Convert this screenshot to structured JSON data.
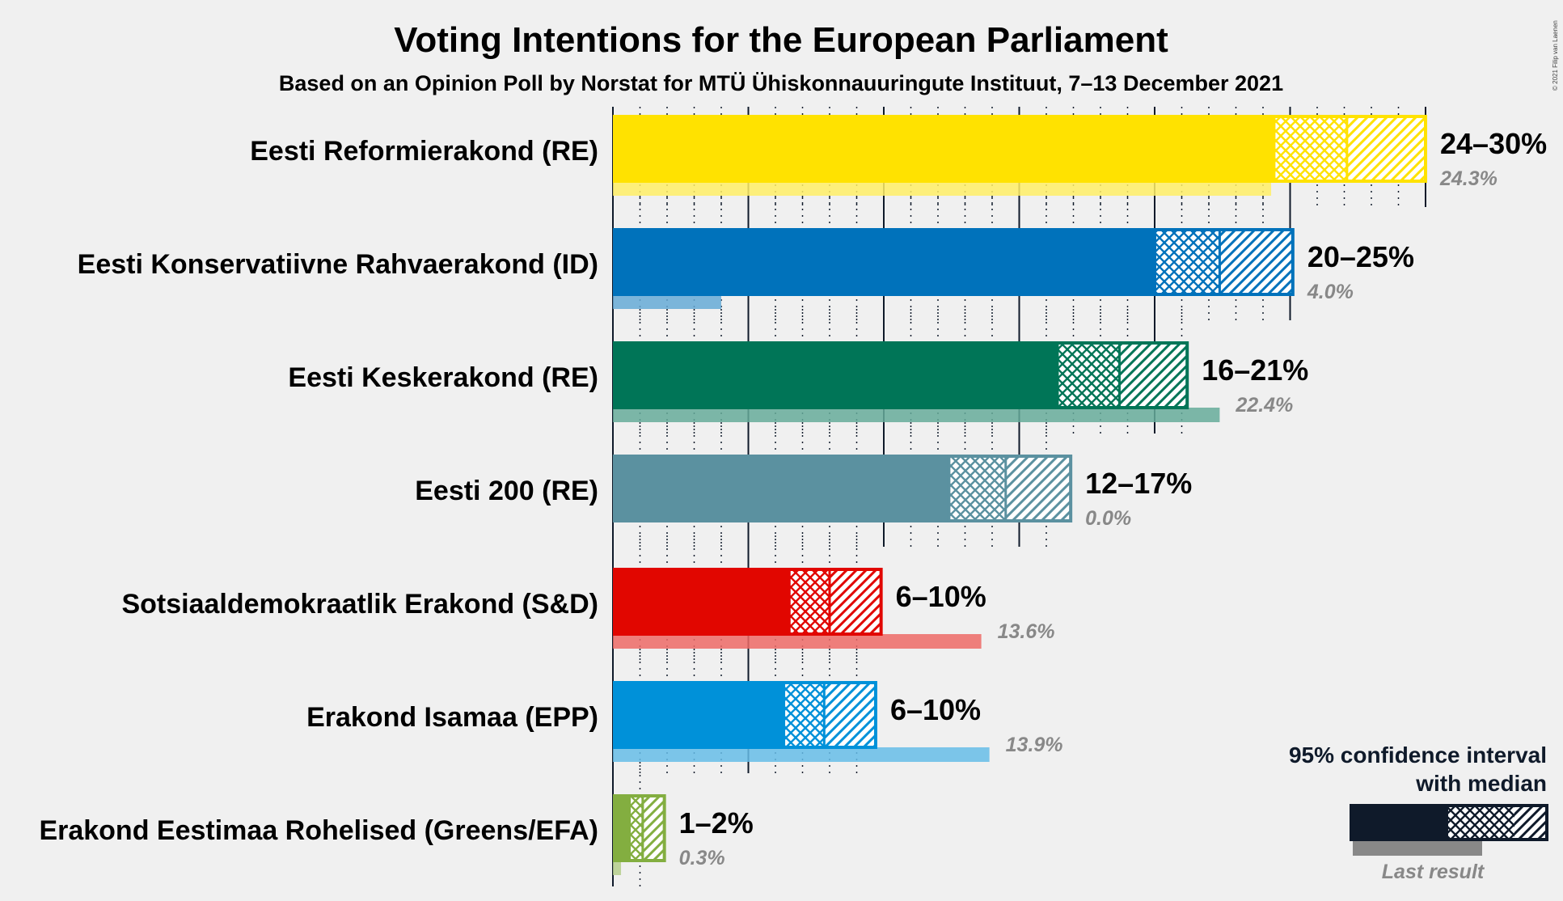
{
  "title": "Voting Intentions for the European Parliament",
  "subtitle": "Based on an Opinion Poll by Norstat for MTÜ Ühiskonnauuringute Instituut, 7–13 December 2021",
  "copyright": "© 2021 Filip van Laenen",
  "legend": {
    "line1": "95% confidence interval",
    "line2": "with median",
    "last_result": "Last result"
  },
  "chart_data": {
    "type": "bar",
    "orientation": "horizontal",
    "title": "Voting Intentions for the European Parliament",
    "subtitle": "Based on an Opinion Poll by Norstat for MTÜ Ühiskonnauuringute Instituut, 7–13 December 2021",
    "xlim": [
      0,
      30
    ],
    "series": [
      {
        "name": "95% confidence interval with median"
      },
      {
        "name": "Last result"
      }
    ],
    "parties": [
      {
        "name": "Eesti Reformierakond (RE)",
        "color": "#FFE200",
        "low": 24.4,
        "median": 27.1,
        "high": 30.0,
        "range_label": "24–30%",
        "last": 24.3,
        "last_label": "24.3%"
      },
      {
        "name": "Eesti Konservatiivne Rahvaerakond (ID)",
        "color": "#0072BB",
        "low": 20.0,
        "median": 22.4,
        "high": 25.1,
        "range_label": "20–25%",
        "last": 4.0,
        "last_label": "4.0%"
      },
      {
        "name": "Eesti Keskerakond (RE)",
        "color": "#007557",
        "low": 16.4,
        "median": 18.7,
        "high": 21.2,
        "range_label": "16–21%",
        "last": 22.4,
        "last_label": "22.4%"
      },
      {
        "name": "Eesti 200 (RE)",
        "color": "#5B91A0",
        "low": 12.4,
        "median": 14.5,
        "high": 16.9,
        "range_label": "12–17%",
        "last": 0.0,
        "last_label": "0.0%"
      },
      {
        "name": "Sotsiaaldemokraatlik Erakond (S&D)",
        "color": "#E10600",
        "low": 6.5,
        "median": 8.0,
        "high": 9.9,
        "range_label": "6–10%",
        "last": 13.6,
        "last_label": "13.6%"
      },
      {
        "name": "Erakond Isamaa (EPP)",
        "color": "#0091D9",
        "low": 6.3,
        "median": 7.8,
        "high": 9.7,
        "range_label": "6–10%",
        "last": 13.9,
        "last_label": "13.9%"
      },
      {
        "name": "Erakond Eestimaa Rohelised (Greens/EFA)",
        "color": "#83AE40",
        "low": 0.6,
        "median": 1.1,
        "high": 1.9,
        "range_label": "1–2%",
        "last": 0.3,
        "last_label": "0.3%"
      }
    ]
  }
}
